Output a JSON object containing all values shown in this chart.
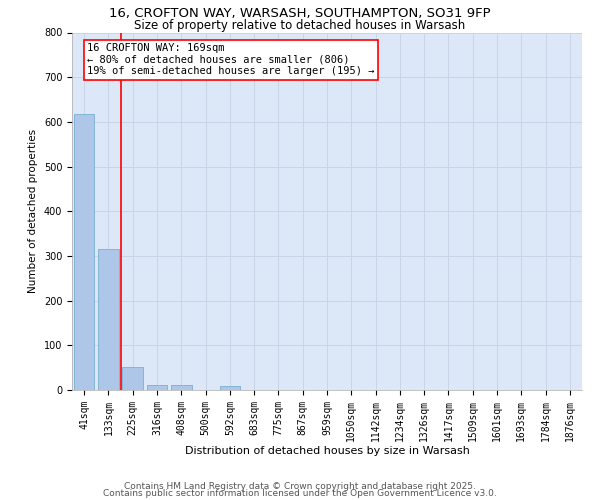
{
  "title1": "16, CROFTON WAY, WARSASH, SOUTHAMPTON, SO31 9FP",
  "title2": "Size of property relative to detached houses in Warsash",
  "xlabel": "Distribution of detached houses by size in Warsash",
  "ylabel": "Number of detached properties",
  "bar_labels": [
    "41sqm",
    "133sqm",
    "225sqm",
    "316sqm",
    "408sqm",
    "500sqm",
    "592sqm",
    "683sqm",
    "775sqm",
    "867sqm",
    "959sqm",
    "1050sqm",
    "1142sqm",
    "1234sqm",
    "1326sqm",
    "1417sqm",
    "1509sqm",
    "1601sqm",
    "1693sqm",
    "1784sqm",
    "1876sqm"
  ],
  "bar_values": [
    617,
    316,
    52,
    11,
    11,
    0,
    8,
    0,
    0,
    0,
    0,
    0,
    0,
    0,
    0,
    0,
    0,
    0,
    0,
    0,
    0
  ],
  "bar_color": "#aec6e8",
  "bar_edgecolor": "#7aafd4",
  "property_line_x": 1.5,
  "annotation_text": "16 CROFTON WAY: 169sqm\n← 80% of detached houses are smaller (806)\n19% of semi-detached houses are larger (195) →",
  "ylim": [
    0,
    800
  ],
  "yticks": [
    0,
    100,
    200,
    300,
    400,
    500,
    600,
    700,
    800
  ],
  "grid_color": "#c8d4e8",
  "background_color": "#dce8f8",
  "footer_text1": "Contains HM Land Registry data © Crown copyright and database right 2025.",
  "footer_text2": "Contains public sector information licensed under the Open Government Licence v3.0.",
  "title_fontsize": 9.5,
  "subtitle_fontsize": 8.5,
  "annotation_fontsize": 7.5,
  "footer_fontsize": 6.5,
  "xlabel_fontsize": 8,
  "ylabel_fontsize": 7.5,
  "tick_fontsize": 7
}
